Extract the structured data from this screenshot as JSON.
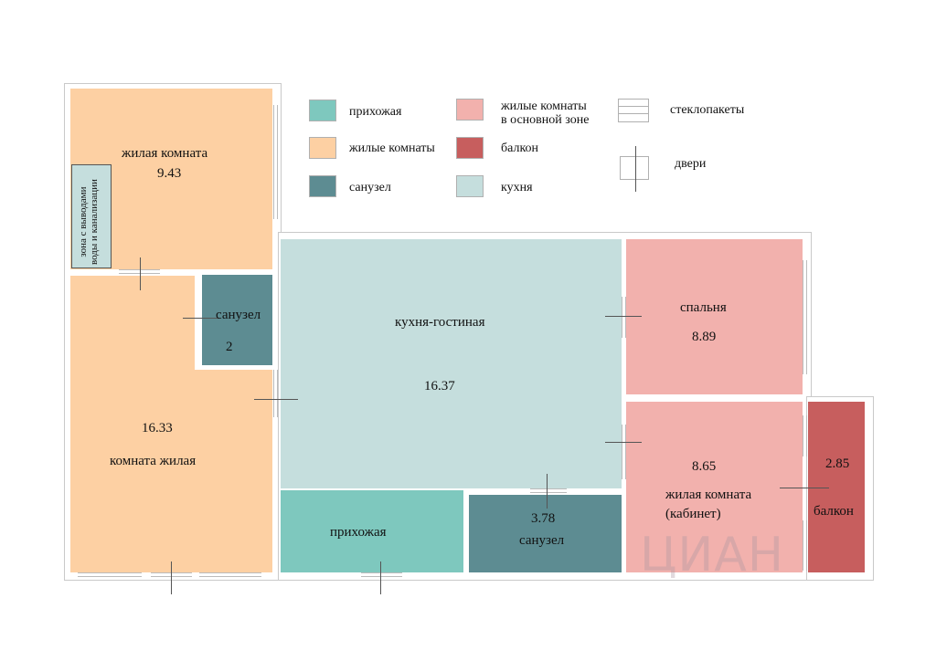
{
  "colors": {
    "hallway": "#7ec8be",
    "living": "#fdd0a3",
    "bathroom": "#5d8c92",
    "main_rooms": "#f2b1ad",
    "balcony": "#c75e5e",
    "kitchen": "#c5dedd"
  },
  "legend": {
    "hallway": "прихожая",
    "living_rooms": "жилые комнаты",
    "bathroom": "санузел",
    "main_zone_line1": "жилые комнаты",
    "main_zone_line2": "в основной зоне",
    "balcony": "балкон",
    "kitchen": "кухня",
    "windows": "стеклопакеты",
    "doors": "двери"
  },
  "rooms": {
    "living_top": {
      "label": "жилая комната",
      "area": "9.43"
    },
    "utility_zone": {
      "line1": "зона с выводами",
      "line2": "воды и канализации"
    },
    "bath_small": {
      "label": "санузел",
      "area": "2"
    },
    "living_big": {
      "area": "16.33",
      "label": "комната жилая"
    },
    "kitchen_living": {
      "label": "кухня-гостиная",
      "area": "16.37"
    },
    "bedroom": {
      "label": "спальня",
      "area": "8.89"
    },
    "study": {
      "area": "8.65",
      "label_line1": "жилая комната",
      "label_line2": "(кабинет)"
    },
    "balcony": {
      "area": "2.85",
      "label": "балкон"
    },
    "hall": {
      "label": "прихожая"
    },
    "bath_large": {
      "area": "3.78",
      "label": "санузел"
    }
  },
  "watermark": "ЦИАН"
}
